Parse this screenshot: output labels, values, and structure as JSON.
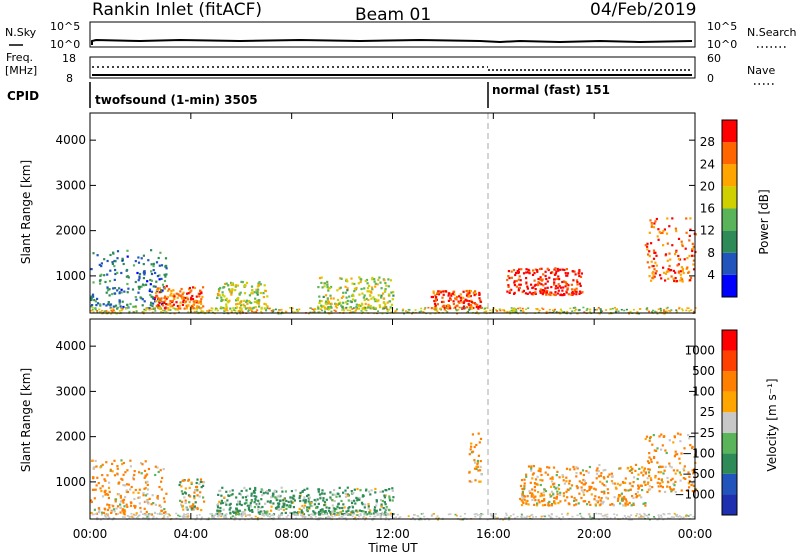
{
  "header": {
    "site": "Rankin Inlet (fitACF)",
    "beam": "Beam 01",
    "date": "04/Feb/2019"
  },
  "top_panels": {
    "nsky_label": "N.Sky",
    "nsky_ticks": [
      "10^5",
      "10^0"
    ],
    "nsearch_label": "N.Search",
    "nsearch_ticks": [
      "10^5",
      "10^0"
    ],
    "freq_label": "Freq.",
    "freq_unit": "[MHz]",
    "freq_ticks": [
      "18",
      "8"
    ],
    "nave_label": "Nave",
    "nave_ticks": [
      "60",
      "0"
    ],
    "cpid_label": "CPID",
    "cpid_segments": [
      {
        "label": "twofsound (1-min) 3505",
        "start": "00:00"
      },
      {
        "label": "normal (fast) 151",
        "start": "15:55"
      }
    ]
  },
  "axes": {
    "ylabel": "Slant Range [km]",
    "xlabel": "Time UT",
    "x_ticks": [
      "00:00",
      "04:00",
      "08:00",
      "12:00",
      "16:00",
      "20:00",
      "00:00"
    ],
    "y_ticks": [
      "1000",
      "2000",
      "3000",
      "4000"
    ]
  },
  "colorbars": {
    "power": {
      "label": "Power [dB]",
      "ticks": [
        "4",
        "8",
        "12",
        "16",
        "20",
        "24",
        "28"
      ],
      "colors": [
        "#0000ff",
        "#2255bb",
        "#2e8b57",
        "#5ab45a",
        "#d0d000",
        "#ffa500",
        "#ff6600",
        "#ff0000"
      ]
    },
    "velocity": {
      "label": "Velocity [m s⁻¹]",
      "ticks": [
        "1000",
        "500",
        "100",
        "25",
        "−25",
        "−100",
        "−500",
        "−1000"
      ],
      "colors": [
        "#1e2fb0",
        "#2255bb",
        "#2e8b57",
        "#5ab45a",
        "#c8c8c8",
        "#ffa500",
        "#ff7f00",
        "#ff4000",
        "#ff0000"
      ]
    }
  },
  "chart_data": [
    {
      "type": "heatmap",
      "title": "Power",
      "xlabel": "Time UT",
      "ylabel": "Slant Range [km]",
      "xlim": [
        "00:00",
        "00:00"
      ],
      "ylim": [
        180,
        4600
      ],
      "colorbar_label": "Power [dB]",
      "colorbar_range": [
        0,
        30
      ],
      "regions": [
        {
          "time": "00:00-03:00",
          "range_km": [
            300,
            1600
          ],
          "level_db": 8
        },
        {
          "time": "02:30-04:30",
          "range_km": [
            300,
            800
          ],
          "level_db": 24
        },
        {
          "time": "05:00-07:00",
          "range_km": [
            300,
            900
          ],
          "level_db": 16
        },
        {
          "time": "09:00-12:00",
          "range_km": [
            300,
            1000
          ],
          "level_db": 16
        },
        {
          "time": "13:30-15:30",
          "range_km": [
            300,
            700
          ],
          "level_db": 26
        },
        {
          "time": "16:30-19:30",
          "range_km": [
            600,
            1200
          ],
          "level_db": 28
        },
        {
          "time": "22:00-00:00",
          "range_km": [
            900,
            2300
          ],
          "level_db": 24
        }
      ]
    },
    {
      "type": "heatmap",
      "title": "Velocity",
      "xlabel": "Time UT",
      "ylabel": "Slant Range [km]",
      "xlim": [
        "00:00",
        "00:00"
      ],
      "ylim": [
        180,
        4600
      ],
      "colorbar_label": "Velocity [m s⁻¹]",
      "colorbar_range": [
        -1000,
        1000
      ],
      "regions": [
        {
          "time": "00:00-03:00",
          "range_km": [
            300,
            1500
          ],
          "velocity": -100
        },
        {
          "time": "03:30-04:30",
          "range_km": [
            400,
            1100
          ],
          "velocity": 0
        },
        {
          "time": "05:00-12:00",
          "range_km": [
            300,
            900
          ],
          "velocity": 100
        },
        {
          "time": "15:00-15:30",
          "range_km": [
            1000,
            2100
          ],
          "velocity": -100
        },
        {
          "time": "17:00-22:00",
          "range_km": [
            500,
            1400
          ],
          "velocity": -100
        },
        {
          "time": "22:00-00:00",
          "range_km": [
            800,
            2100
          ],
          "velocity": -100
        }
      ]
    }
  ]
}
